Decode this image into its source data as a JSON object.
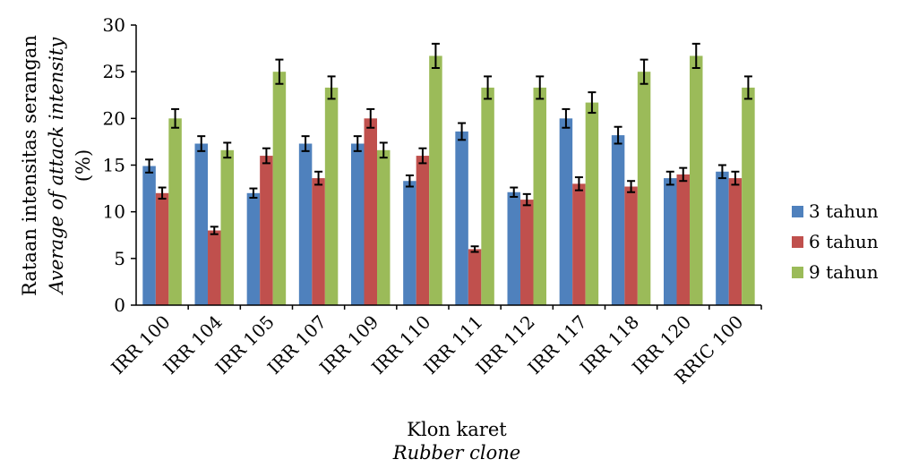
{
  "chart_data": {
    "type": "bar",
    "ylabel_line1": "Rataan intensitas serangan",
    "ylabel_line2": "Average of attack intensity",
    "ylabel_line3": "(%)",
    "xlabel_line1": "Klon karet",
    "xlabel_line2": "Rubber clone",
    "ylim": [
      0,
      30
    ],
    "yticks": [
      "0",
      "5",
      "10",
      "15",
      "20",
      "25",
      "30"
    ],
    "categories": [
      "IRR 100",
      "IRR 104",
      "IRR 105",
      "IRR 107",
      "IRR 109",
      "IRR 110",
      "IRR 111",
      "IRR 112",
      "IRR 117",
      "IRR 118",
      "IRR 120",
      "RRIC 100"
    ],
    "series": [
      {
        "name": "3 tahun",
        "color": "#4F81BD",
        "values": [
          14.9,
          17.3,
          12.0,
          17.3,
          17.3,
          13.3,
          18.6,
          12.1,
          20.0,
          18.2,
          13.6,
          14.3
        ],
        "errors": [
          0.7,
          0.8,
          0.5,
          0.8,
          0.8,
          0.6,
          0.9,
          0.5,
          1.0,
          0.9,
          0.7,
          0.7
        ]
      },
      {
        "name": "6 tahun",
        "color": "#C0504D",
        "values": [
          12.0,
          8.0,
          16.0,
          13.6,
          20.0,
          16.0,
          6.0,
          11.3,
          13.0,
          12.7,
          14.0,
          13.6
        ],
        "errors": [
          0.6,
          0.4,
          0.8,
          0.7,
          1.0,
          0.8,
          0.3,
          0.6,
          0.7,
          0.6,
          0.7,
          0.7
        ]
      },
      {
        "name": "9 tahun",
        "color": "#9BBB59",
        "values": [
          20.0,
          16.6,
          25.0,
          23.3,
          16.6,
          26.7,
          23.3,
          23.3,
          21.7,
          25.0,
          26.7,
          23.3
        ],
        "errors": [
          1.0,
          0.8,
          1.3,
          1.2,
          0.8,
          1.3,
          1.2,
          1.2,
          1.1,
          1.3,
          1.3,
          1.2
        ]
      }
    ],
    "grid": false,
    "legend_position": "right"
  }
}
